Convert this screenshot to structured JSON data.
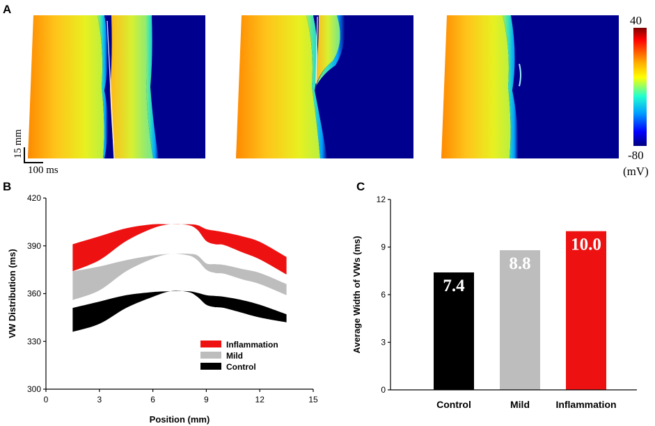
{
  "colors": {
    "inflammation": "#ee1111",
    "mild": "#bdbdbd",
    "control": "#000000",
    "map_dark": "#00008f"
  },
  "panel_labels": {
    "a": "A",
    "b": "B",
    "c": "C"
  },
  "panel_a": {
    "colorbar": {
      "max_label": "40",
      "min_label": "-80",
      "unit_label": "(mV)"
    },
    "scalebar": {
      "vertical_label": "15 mm",
      "horizontal_label": "100 ms"
    },
    "maps": [
      {
        "name": "control-map"
      },
      {
        "name": "mild-map"
      },
      {
        "name": "inflammation-map"
      }
    ]
  },
  "chart_data": [
    {
      "id": "B",
      "type": "area",
      "title": "",
      "xlabel": "Position (mm)",
      "ylabel": "VW Distribution (ms)",
      "xlim": [
        0,
        15
      ],
      "ylim": [
        300,
        420
      ],
      "xticks": [
        0,
        3,
        6,
        9,
        12,
        15
      ],
      "yticks": [
        300,
        330,
        360,
        390,
        420
      ],
      "legend_position": "bottom-right",
      "series": [
        {
          "name": "Inflammation",
          "x": [
            1.5,
            3,
            4.5,
            6,
            7,
            8,
            8.5,
            9,
            9.5,
            10,
            11,
            12,
            13.5
          ],
          "upper": [
            391,
            396,
            401,
            403.5,
            403.5,
            403.5,
            403,
            400.5,
            399.5,
            398.5,
            396,
            392.5,
            383
          ],
          "lower": [
            374,
            381,
            393,
            401,
            403.5,
            403,
            400,
            393,
            391,
            390.5,
            386,
            381.5,
            372
          ]
        },
        {
          "name": "Mild",
          "x": [
            1.5,
            3,
            4.5,
            6,
            7,
            8,
            8.5,
            9,
            9.5,
            10,
            11,
            12,
            13.5
          ],
          "upper": [
            374,
            377,
            381,
            384,
            385,
            385,
            384,
            379,
            378.5,
            378,
            375.5,
            373,
            366
          ],
          "lower": [
            356,
            362,
            374,
            382,
            385,
            384,
            381,
            375,
            373,
            372.5,
            369,
            366,
            359
          ]
        },
        {
          "name": "Control",
          "x": [
            1.5,
            3,
            4.5,
            6,
            7,
            8,
            8.5,
            9,
            9.5,
            10,
            11,
            12,
            13.5
          ],
          "upper": [
            351,
            355,
            359,
            361,
            361.5,
            361.5,
            360.5,
            359,
            358.5,
            358,
            356,
            353,
            347
          ],
          "lower": [
            336,
            341,
            351,
            358,
            361.5,
            361,
            358,
            353,
            351.5,
            351,
            348,
            345,
            342
          ]
        }
      ]
    },
    {
      "id": "C",
      "type": "bar",
      "title": "",
      "xlabel": "",
      "ylabel": "Average Width of VWs (ms)",
      "ylim": [
        0,
        12
      ],
      "yticks": [
        0,
        3,
        6,
        9,
        12
      ],
      "categories": [
        "Control",
        "Mild",
        "Inflammation"
      ],
      "values": [
        7.4,
        8.8,
        10.0
      ],
      "value_labels": [
        "7.4",
        "8.8",
        "10.0"
      ]
    }
  ]
}
